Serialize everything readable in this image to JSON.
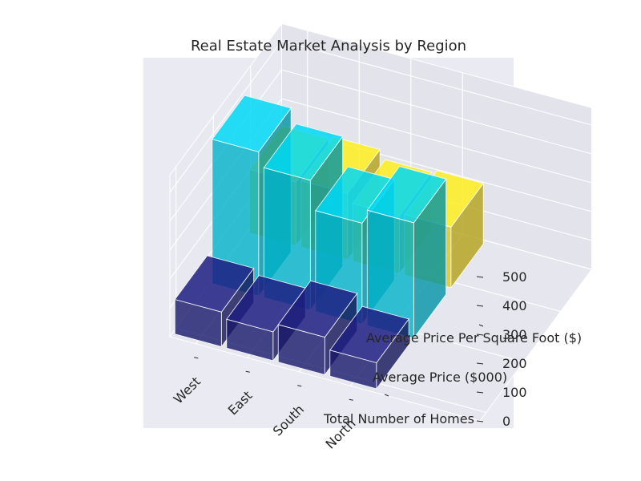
{
  "chart_data": {
    "type": "bar",
    "subtype": "3d-bar",
    "title": "Real Estate Market Analysis by Region",
    "categories": [
      "West",
      "East",
      "South",
      "North"
    ],
    "series": [
      {
        "name": "Total Number of Homes",
        "values": [
          120,
          100,
          130,
          90
        ],
        "color": "#191970"
      },
      {
        "name": "Average Price ($000)",
        "values": [
          500,
          450,
          350,
          400
        ],
        "color": "#00bcd4"
      },
      {
        "name": "Average Price Per Square Foot ($)",
        "values": [
          220,
          230,
          200,
          210
        ],
        "color": "#e6cf1c"
      }
    ],
    "zticks": [
      "0",
      "100",
      "200",
      "300",
      "400",
      "500"
    ],
    "zlim": [
      0,
      500
    ],
    "grid": true,
    "background": "#eaeaf2"
  }
}
